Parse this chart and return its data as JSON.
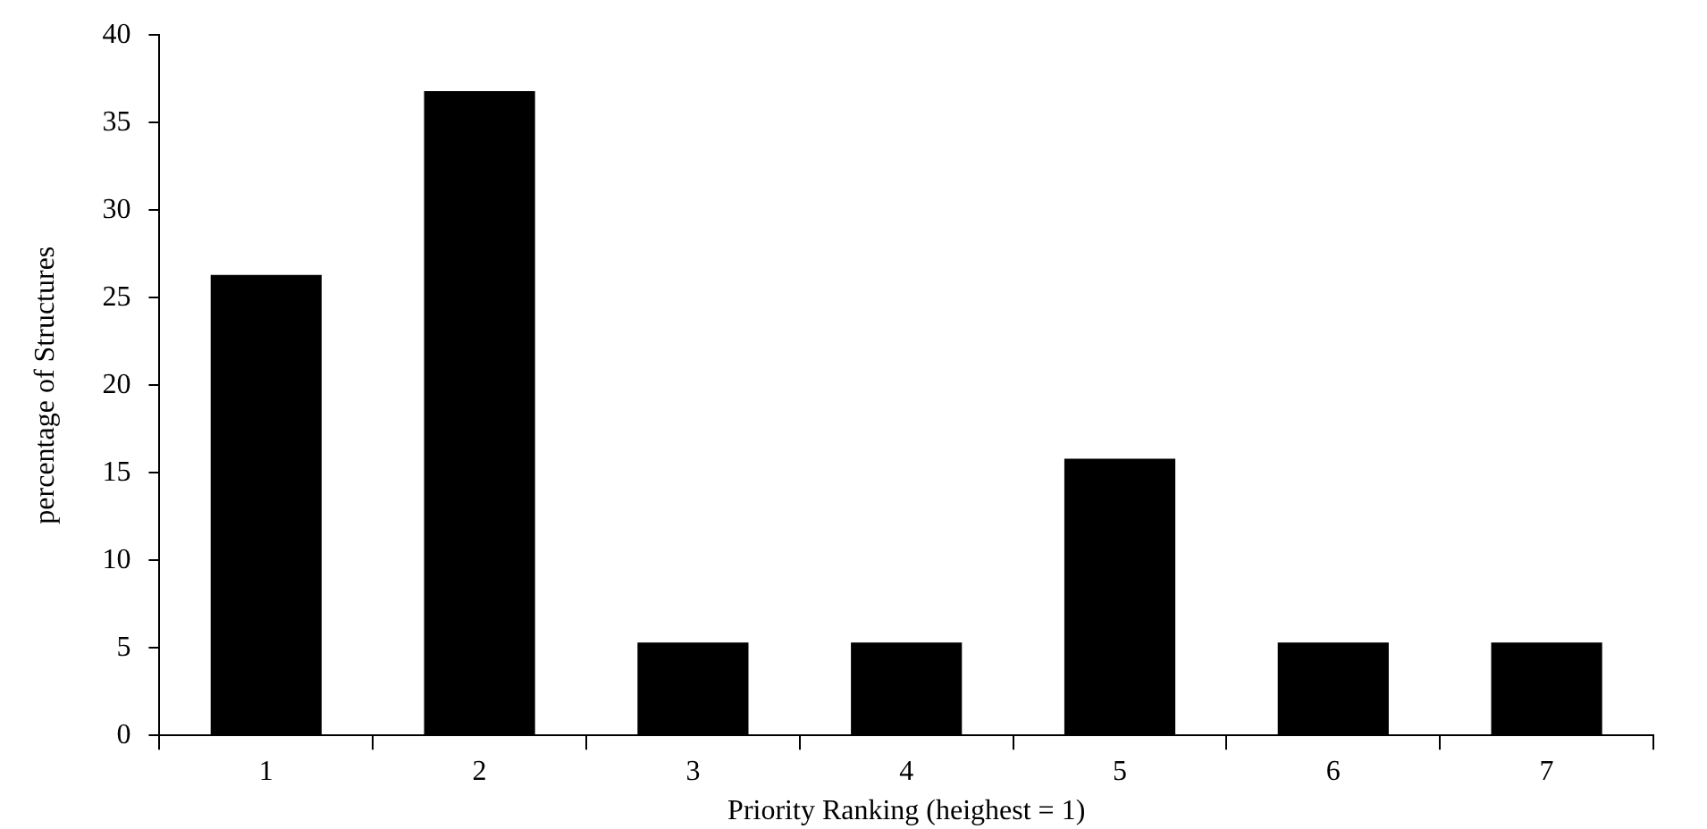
{
  "chart_data": {
    "type": "bar",
    "xlabel": "Priority Ranking (heighest = 1)",
    "ylabel": "percentage of Structures",
    "categories": [
      "1",
      "2",
      "3",
      "4",
      "5",
      "6",
      "7"
    ],
    "values": [
      26.3,
      36.8,
      5.3,
      5.3,
      15.8,
      5.3,
      5.3
    ],
    "color": "#000000",
    "ylim": [
      0,
      40
    ],
    "yticks": [
      0,
      5,
      10,
      15,
      20,
      25,
      30,
      35,
      40
    ],
    "grid": false,
    "legend": false
  }
}
